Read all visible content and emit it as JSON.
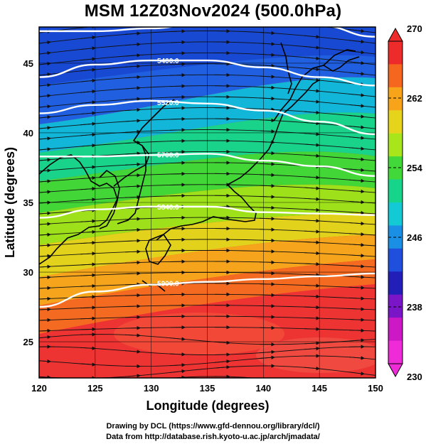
{
  "title": "MSM 12Z03Nov2024 (500.0hPa)",
  "footer": {
    "line1": "Drawing by DCL (https://www.gfd-dennou.org/library/dcl/)",
    "line2": "Data from http://database.rish.kyoto-u.ac.jp/arch/jmadata/"
  },
  "map": {
    "xlabel": "Longitude (degrees)",
    "ylabel": "Latitude  (degrees)",
    "lon_range": [
      120,
      150
    ],
    "lat_range": [
      22.4,
      47.6
    ],
    "lon_ticks": [
      "120",
      "125",
      "130",
      "135",
      "140",
      "145",
      "150"
    ],
    "lat_ticks": [
      "25",
      "30",
      "35",
      "40",
      "45"
    ],
    "shading": "temperature (K), rainbow colormap",
    "contours": [
      {
        "label": "5900.0",
        "lats": [
          27.5,
          28.6,
          29.1,
          29.3,
          29.5,
          29.7,
          29.9
        ]
      },
      {
        "label": "5840.0",
        "lats": [
          33.9,
          34.5,
          34.7,
          34.7,
          34.3,
          34.2,
          34.1
        ]
      },
      {
        "label": "5700.0",
        "lats": [
          38.3,
          38.3,
          38.4,
          38.5,
          38.0,
          37.6,
          36.9
        ]
      },
      {
        "label": "5520.0",
        "lats": [
          41.4,
          42.0,
          42.3,
          42.1,
          41.6,
          40.8,
          39.9
        ]
      },
      {
        "label": "5400.0",
        "lats": [
          44.0,
          44.9,
          45.2,
          45.2,
          44.7,
          44.0,
          43.4
        ]
      },
      {
        "label": "",
        "lats": [
          47.3,
          47.3,
          47.5,
          48.0,
          48.0,
          47.7,
          46.9
        ]
      }
    ]
  },
  "colorbar": {
    "ticks": [
      "270",
      "262",
      "254",
      "246",
      "238",
      "230"
    ],
    "colors_top_to_bottom": [
      "#ee2b2b",
      "#f5671e",
      "#f8a41a",
      "#e6d41c",
      "#a8e61b",
      "#43d83a",
      "#16d48a",
      "#12c9d4",
      "#1a8fe3",
      "#1f4fdc",
      "#221fb8",
      "#7a16c8",
      "#cc19c5",
      "#ee2bd6"
    ]
  }
}
